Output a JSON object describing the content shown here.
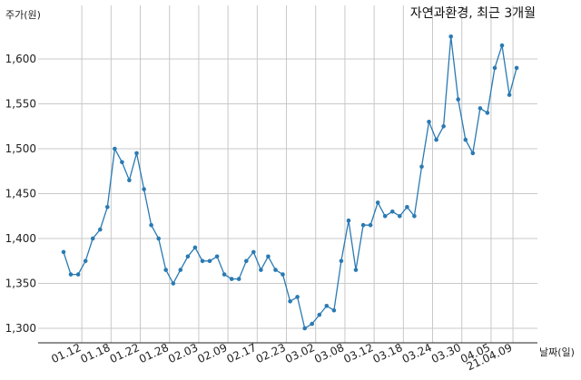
{
  "chart_data": {
    "type": "line",
    "title": "자연과환경, 최근 3개월",
    "ylabel": "주가(원)",
    "xlabel": "날짜(일)",
    "ylim": [
      1290,
      1640
    ],
    "y_ticks": [
      1300,
      1350,
      1400,
      1450,
      1500,
      1550,
      1600
    ],
    "y_tick_labels": [
      "1,300",
      "1,350",
      "1,400",
      "1,450",
      "1,500",
      "1,550",
      "1,600"
    ],
    "x_tick_labels": [
      "01.12",
      "01.18",
      "01.22",
      "01.28",
      "02.03",
      "02.09",
      "02.17",
      "02.23",
      "03.02",
      "03.08",
      "03.12",
      "03.18",
      "03.24",
      "03.30",
      "04.05",
      "21.04.09"
    ],
    "x_tick_positions": [
      2.5,
      6.5,
      10.5,
      14.5,
      18.5,
      22.5,
      26.5,
      30.5,
      34.5,
      38.5,
      42.5,
      46.5,
      50.5,
      54.5,
      58.5,
      61.5
    ],
    "grid": true,
    "series": [
      {
        "color": "#2a7ab3",
        "values": [
          1385,
          1360,
          1360,
          1375,
          1400,
          1410,
          1435,
          1500,
          1485,
          1465,
          1495,
          1455,
          1415,
          1400,
          1365,
          1350,
          1365,
          1380,
          1390,
          1375,
          1375,
          1380,
          1360,
          1355,
          1355,
          1375,
          1385,
          1365,
          1380,
          1365,
          1360,
          1330,
          1335,
          1300,
          1305,
          1315,
          1325,
          1320,
          1375,
          1420,
          1365,
          1415,
          1415,
          1440,
          1425,
          1430,
          1425,
          1435,
          1425,
          1480,
          1530,
          1510,
          1525,
          1625,
          1555,
          1510,
          1495,
          1545,
          1540,
          1590,
          1615,
          1560,
          1590
        ]
      }
    ]
  }
}
